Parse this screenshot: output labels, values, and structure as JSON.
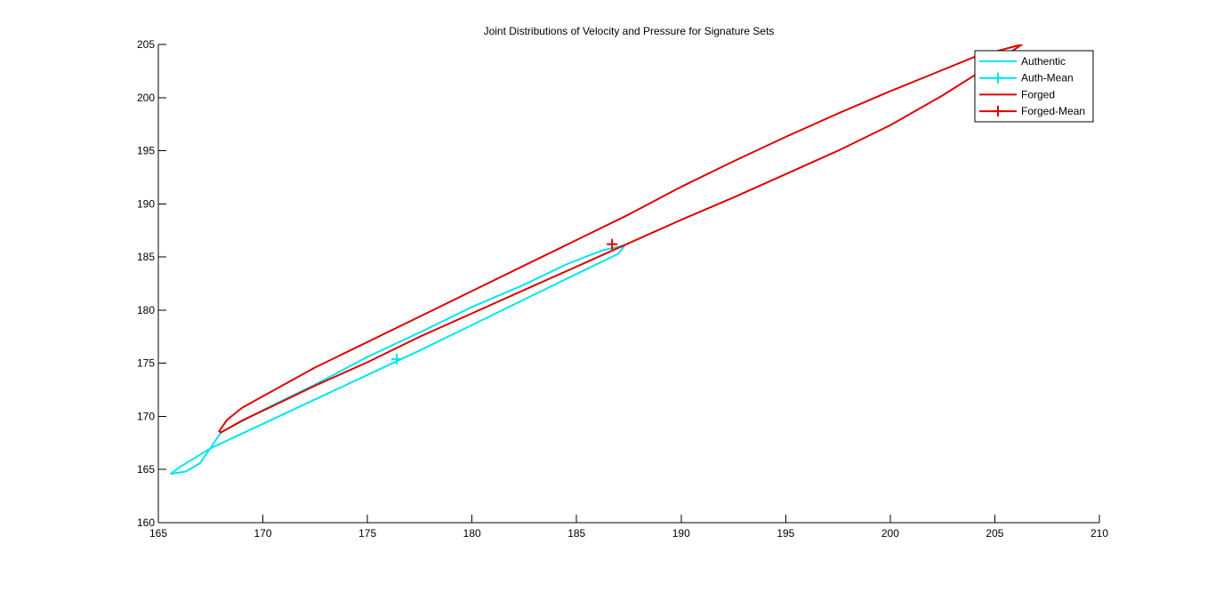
{
  "chart_data": {
    "type": "line",
    "title": "Joint Distributions of Velocity and Pressure for Signature Sets",
    "xlabel": "",
    "ylabel": "",
    "xlim": [
      165,
      210
    ],
    "ylim": [
      160,
      205
    ],
    "xticks": [
      "165",
      "170",
      "175",
      "180",
      "185",
      "190",
      "195",
      "200",
      "205",
      "210"
    ],
    "yticks": [
      "160",
      "165",
      "170",
      "175",
      "180",
      "185",
      "190",
      "195",
      "200",
      "205"
    ],
    "grid": false,
    "legend_position": "top-right",
    "series": [
      {
        "name": "Authentic",
        "kind": "contour",
        "color": "#00e5ee",
        "points": [
          [
            168.0,
            168.5
          ],
          [
            170.0,
            170.6
          ],
          [
            172.5,
            173.0
          ],
          [
            175.0,
            175.6
          ],
          [
            177.5,
            177.9
          ],
          [
            180.0,
            180.3
          ],
          [
            182.5,
            182.4
          ],
          [
            184.5,
            184.3
          ],
          [
            186.2,
            185.6
          ],
          [
            187.3,
            186.1
          ],
          [
            187.0,
            185.3
          ],
          [
            185.0,
            183.4
          ],
          [
            182.5,
            181.0
          ],
          [
            180.0,
            178.6
          ],
          [
            177.5,
            176.2
          ],
          [
            175.0,
            173.9
          ],
          [
            172.5,
            171.6
          ],
          [
            170.0,
            169.3
          ],
          [
            167.5,
            167.0
          ],
          [
            166.0,
            165.2
          ],
          [
            165.6,
            164.6
          ],
          [
            166.3,
            164.8
          ],
          [
            167.0,
            165.6
          ],
          [
            168.0,
            168.5
          ]
        ]
      },
      {
        "name": "Auth-Mean",
        "kind": "marker",
        "color": "#00e5ee",
        "x": 176.4,
        "y": 175.4
      },
      {
        "name": "Forged",
        "kind": "contour",
        "color": "#e00000",
        "points": [
          [
            168.0,
            168.5
          ],
          [
            169.0,
            169.6
          ],
          [
            170.5,
            171.0
          ],
          [
            172.5,
            172.9
          ],
          [
            175.0,
            175.1
          ],
          [
            177.5,
            177.5
          ],
          [
            180.0,
            179.7
          ],
          [
            182.5,
            181.9
          ],
          [
            185.0,
            184.1
          ],
          [
            187.5,
            186.3
          ],
          [
            190.0,
            188.5
          ],
          [
            192.5,
            190.6
          ],
          [
            195.0,
            192.8
          ],
          [
            197.5,
            195.0
          ],
          [
            200.0,
            197.4
          ],
          [
            202.5,
            200.2
          ],
          [
            205.0,
            203.3
          ],
          [
            206.3,
            205.0
          ],
          [
            204.0,
            203.8
          ],
          [
            202.0,
            202.2
          ],
          [
            200.0,
            200.6
          ],
          [
            197.5,
            198.5
          ],
          [
            195.0,
            196.3
          ],
          [
            192.5,
            194.0
          ],
          [
            190.0,
            191.6
          ],
          [
            187.5,
            189.0
          ],
          [
            185.0,
            186.6
          ],
          [
            182.5,
            184.2
          ],
          [
            180.0,
            181.8
          ],
          [
            177.5,
            179.4
          ],
          [
            175.0,
            177.0
          ],
          [
            172.5,
            174.6
          ],
          [
            170.0,
            171.9
          ],
          [
            169.0,
            170.8
          ],
          [
            168.3,
            169.7
          ],
          [
            167.9,
            168.6
          ],
          [
            168.0,
            168.5
          ]
        ]
      },
      {
        "name": "Forged-Mean",
        "kind": "marker",
        "color": "#e00000",
        "x": 186.7,
        "y": 186.2
      }
    ]
  }
}
